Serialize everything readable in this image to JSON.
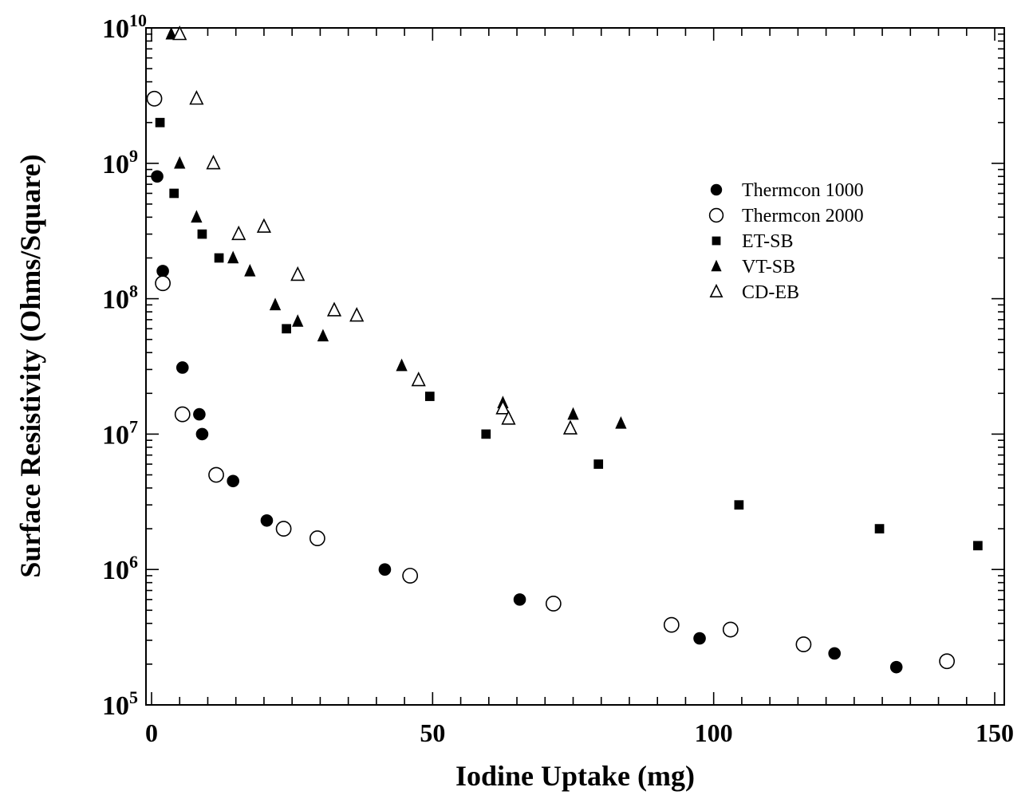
{
  "chart_data": {
    "type": "scatter",
    "title": "",
    "xlabel": "Iodine Uptake (mg)",
    "ylabel": "Surface Resistivity (Ohms/Square)",
    "xlim": [
      0,
      150
    ],
    "ylim": [
      100000,
      10000000000
    ],
    "yscale": "log",
    "x_ticks": [
      0,
      50,
      100,
      150
    ],
    "y_tick_labels": [
      {
        "base": "10",
        "exp": "5",
        "value": 100000
      },
      {
        "base": "10",
        "exp": "6",
        "value": 1000000
      },
      {
        "base": "10",
        "exp": "7",
        "value": 10000000
      },
      {
        "base": "10",
        "exp": "8",
        "value": 100000000
      },
      {
        "base": "10",
        "exp": "9",
        "value": 1000000000
      },
      {
        "base": "10",
        "exp": "10",
        "value": 10000000000
      }
    ],
    "grid": false,
    "legend_position": "upper-right",
    "series": [
      {
        "name": "Thermcon 1000",
        "marker": "filled-circle",
        "points": [
          [
            1,
            800000000
          ],
          [
            2,
            160000000
          ],
          [
            5.5,
            31000000
          ],
          [
            8.5,
            14000000
          ],
          [
            9,
            10000000
          ],
          [
            14.5,
            4500000
          ],
          [
            20.5,
            2300000
          ],
          [
            41.5,
            1000000
          ],
          [
            65.5,
            600000
          ],
          [
            97.5,
            310000
          ],
          [
            121.5,
            240000
          ],
          [
            132.5,
            190000
          ]
        ]
      },
      {
        "name": "Thermcon 2000",
        "marker": "open-circle",
        "points": [
          [
            0.5,
            3000000000
          ],
          [
            2,
            130000000
          ],
          [
            5.5,
            14000000
          ],
          [
            11.5,
            5000000
          ],
          [
            23.5,
            2000000
          ],
          [
            29.5,
            1700000
          ],
          [
            46,
            900000
          ],
          [
            71.5,
            560000
          ],
          [
            92.5,
            390000
          ],
          [
            103,
            360000
          ],
          [
            116,
            280000
          ],
          [
            141.5,
            210000
          ]
        ]
      },
      {
        "name": "ET-SB",
        "marker": "filled-square",
        "points": [
          [
            1.5,
            2000000000
          ],
          [
            4,
            600000000
          ],
          [
            9,
            300000000
          ],
          [
            12,
            200000000
          ],
          [
            24,
            60000000
          ],
          [
            49.5,
            19000000
          ],
          [
            59.5,
            10000000
          ],
          [
            79.5,
            6000000
          ],
          [
            104.5,
            3000000
          ],
          [
            129.5,
            2000000
          ],
          [
            147,
            1500000
          ]
        ]
      },
      {
        "name": "VT-SB",
        "marker": "filled-triangle",
        "points": [
          [
            3.5,
            9000000000
          ],
          [
            5,
            1000000000
          ],
          [
            8,
            400000000
          ],
          [
            14.5,
            200000000
          ],
          [
            17.5,
            160000000
          ],
          [
            22,
            90000000
          ],
          [
            26,
            68000000
          ],
          [
            30.5,
            53000000
          ],
          [
            44.5,
            32000000
          ],
          [
            62.5,
            17000000
          ],
          [
            75,
            14000000
          ],
          [
            83.5,
            12000000
          ]
        ]
      },
      {
        "name": "CD-EB",
        "marker": "open-triangle",
        "points": [
          [
            5,
            9000000000
          ],
          [
            8,
            3000000000
          ],
          [
            11,
            1000000000
          ],
          [
            15.5,
            300000000
          ],
          [
            20,
            340000000
          ],
          [
            26,
            150000000
          ],
          [
            32.5,
            82000000
          ],
          [
            36.5,
            75000000
          ],
          [
            47.5,
            25000000
          ],
          [
            62.5,
            15500000
          ],
          [
            63.5,
            13000000
          ],
          [
            74.5,
            11000000
          ]
        ]
      }
    ]
  }
}
